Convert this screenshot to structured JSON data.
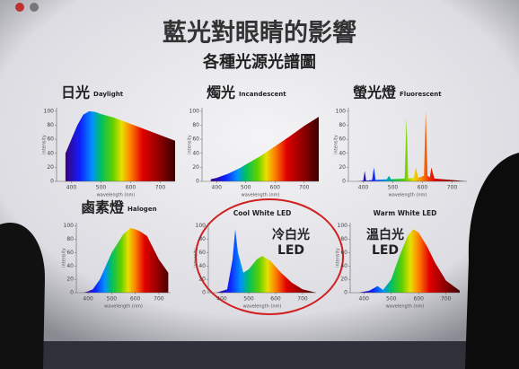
{
  "slide": {
    "title": "藍光對眼睛的影響",
    "subtitle": "各種光源光譜圖"
  },
  "chart_data": [
    {
      "type": "area",
      "title": "日光",
      "subtitle": "Daylight",
      "x_label": "wavelength (nm)",
      "y_label": "intensity",
      "x": [
        380,
        400,
        420,
        440,
        460,
        480,
        500,
        550,
        600,
        650,
        700,
        750
      ],
      "values": [
        40,
        60,
        80,
        95,
        100,
        99,
        96,
        90,
        82,
        74,
        66,
        58
      ],
      "xlim": [
        350,
        750
      ],
      "ylim": [
        0,
        105
      ],
      "xticks": [
        400,
        500,
        600,
        700
      ],
      "yticks": [
        0,
        20,
        40,
        60,
        80,
        100
      ]
    },
    {
      "type": "area",
      "title": "燭光",
      "subtitle": "Incandescent",
      "x_label": "wavelength (nm)",
      "y_label": "intensity",
      "x": [
        380,
        400,
        420,
        440,
        460,
        480,
        500,
        550,
        600,
        650,
        700,
        750
      ],
      "values": [
        3,
        5,
        8,
        11,
        15,
        19,
        24,
        36,
        50,
        64,
        79,
        92
      ],
      "xlim": [
        350,
        750
      ],
      "ylim": [
        0,
        105
      ],
      "xticks": [
        400,
        500,
        600,
        700
      ],
      "yticks": [
        0,
        20,
        40,
        60,
        80,
        100
      ]
    },
    {
      "type": "area",
      "title": "螢光燈",
      "subtitle": "Fluorescent",
      "x_label": "wavelength (nm)",
      "y_label": "intensity",
      "x": [
        380,
        400,
        405,
        410,
        430,
        436,
        442,
        480,
        487,
        494,
        540,
        546,
        552,
        570,
        578,
        585,
        605,
        611,
        617,
        625,
        630,
        640,
        700,
        750
      ],
      "values": [
        0,
        1,
        15,
        1,
        2,
        20,
        2,
        3,
        8,
        3,
        4,
        90,
        4,
        5,
        20,
        5,
        8,
        100,
        8,
        6,
        20,
        4,
        2,
        0
      ],
      "xlim": [
        350,
        750
      ],
      "ylim": [
        0,
        105
      ],
      "xticks": [
        400,
        500,
        600,
        700
      ],
      "yticks": [
        0,
        20,
        40,
        60,
        80,
        100
      ]
    },
    {
      "type": "area",
      "title": "鹵素燈",
      "subtitle": "Halogen",
      "x_label": "wavelength (nm)",
      "y_label": "intensity",
      "x": [
        380,
        400,
        420,
        450,
        500,
        550,
        580,
        600,
        620,
        650,
        700,
        740
      ],
      "values": [
        0,
        2,
        5,
        20,
        60,
        88,
        97,
        95,
        92,
        85,
        50,
        30
      ],
      "xlim": [
        350,
        750
      ],
      "ylim": [
        0,
        105
      ],
      "xticks": [
        400,
        500,
        600,
        700
      ],
      "yticks": [
        0,
        20,
        40,
        60,
        80,
        100
      ]
    },
    {
      "type": "area",
      "title": "Cool White LED",
      "annotation": [
        "冷白光",
        "LED"
      ],
      "x_label": "wavelength (nm)",
      "y_label": "intensity",
      "x": [
        380,
        420,
        440,
        450,
        460,
        480,
        500,
        530,
        550,
        580,
        620,
        660,
        700,
        750
      ],
      "values": [
        0,
        5,
        50,
        95,
        60,
        30,
        35,
        50,
        55,
        48,
        30,
        15,
        5,
        0
      ],
      "xlim": [
        350,
        750
      ],
      "ylim": [
        0,
        105
      ],
      "xticks": [
        400,
        500,
        600,
        700
      ],
      "yticks": [
        0,
        20,
        40,
        60,
        80,
        100
      ]
    },
    {
      "type": "area",
      "title": "Warm White LED",
      "annotation": [
        "溫白光",
        "LED"
      ],
      "x_label": "wavelength (nm)",
      "y_label": "intensity",
      "x": [
        380,
        420,
        450,
        470,
        500,
        530,
        560,
        580,
        600,
        630,
        660,
        700,
        750
      ],
      "values": [
        0,
        3,
        10,
        4,
        20,
        55,
        85,
        95,
        90,
        70,
        45,
        18,
        3
      ],
      "xlim": [
        350,
        750
      ],
      "ylim": [
        0,
        105
      ],
      "xticks": [
        400,
        500,
        600,
        700
      ],
      "yticks": [
        0,
        20,
        40,
        60,
        80,
        100
      ]
    }
  ]
}
